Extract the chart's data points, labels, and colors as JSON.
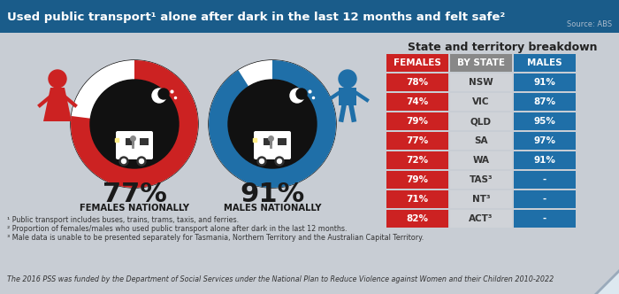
{
  "title": "Used public transport¹ alone after dark in the last 12 months and felt safe²",
  "source": "Source: ABS",
  "title_bg": "#1a5c8a",
  "title_color": "#ffffff",
  "bg_color": "#c8cdd4",
  "female_pct": "77%",
  "male_pct": "91%",
  "female_label": "FEMALES NATIONALLY",
  "male_label": "MALES NATIONALLY",
  "female_color": "#cc2222",
  "male_color": "#1f6fa8",
  "table_title": "State and territory breakdown",
  "col_headers": [
    "FEMALES",
    "BY STATE",
    "MALES"
  ],
  "rows": [
    [
      "78%",
      "NSW",
      "91%"
    ],
    [
      "74%",
      "VIC",
      "87%"
    ],
    [
      "79%",
      "QLD",
      "95%"
    ],
    [
      "77%",
      "SA",
      "97%"
    ],
    [
      "72%",
      "WA",
      "91%"
    ],
    [
      "79%",
      "TAS³",
      "-"
    ],
    [
      "71%",
      "NT³",
      "-"
    ],
    [
      "82%",
      "ACT³",
      "-"
    ]
  ],
  "female_col_color": "#cc2222",
  "male_col_color": "#1f6fa8",
  "state_col_color": "#d0d3d8",
  "header_female_color": "#cc2222",
  "header_male_color": "#1f6fa8",
  "header_state_color": "#888888",
  "footnote1": "¹ Public transport includes buses, trains, trams, taxis, and ferries.",
  "footnote2": "² Proportion of females/males who used public transport alone after dark in the last 12 months.",
  "footnote3": "³ Male data is unable to be presented separately for Tasmania, Northern Territory and the Australian Capital Territory.",
  "footnote4": "The 2016 PSS was funded by the Department of Social Services under the National Plan to Reduce Violence against Women and their Children 2010-2022"
}
